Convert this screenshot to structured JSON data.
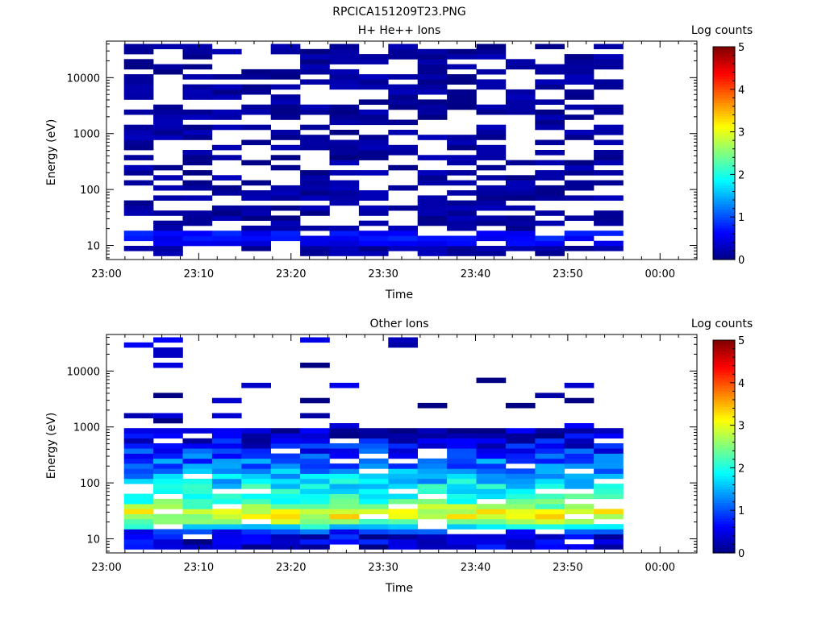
{
  "title": "RPCICA151209T23.PNG",
  "colorbar": {
    "label": "Log counts",
    "range": [
      0,
      5
    ],
    "tick_labels": [
      "0",
      "1",
      "2",
      "3",
      "4",
      "5"
    ]
  },
  "chart_data": [
    {
      "type": "heatmap",
      "title": "H+ He++ Ions",
      "xlabel": "Time",
      "ylabel": "Energy (eV)",
      "ylog": true,
      "xlim": [
        0,
        64
      ],
      "ylim": [
        5.6,
        45000
      ],
      "x_ticks": [
        {
          "v": 0,
          "label": "23:00"
        },
        {
          "v": 10,
          "label": "23:10"
        },
        {
          "v": 20,
          "label": "23:20"
        },
        {
          "v": 30,
          "label": "23:30"
        },
        {
          "v": 40,
          "label": "23:40"
        },
        {
          "v": 50,
          "label": "23:50"
        },
        {
          "v": 60,
          "label": "00:00"
        }
      ],
      "y_ticks": [
        {
          "v": 10,
          "label": "10"
        },
        {
          "v": 100,
          "label": "100"
        },
        {
          "v": 1000,
          "label": "1000"
        },
        {
          "v": 10000,
          "label": "10000"
        }
      ],
      "data_x_range": [
        1.9,
        56.0
      ],
      "n_columns": 17,
      "energy_rows": 42,
      "noise_level": 0.3,
      "bands": [
        {
          "from": 10.5,
          "to": 12.5,
          "level": 0.35
        },
        {
          "from": 12.5,
          "to": 20,
          "level": 0.5
        }
      ],
      "sparse_fill": 0.55,
      "colorbar_range": [
        0,
        5
      ]
    },
    {
      "type": "heatmap",
      "title": "Other Ions",
      "xlabel": "Time",
      "ylabel": "Energy (eV)",
      "ylog": true,
      "xlim": [
        0,
        64
      ],
      "ylim": [
        5.6,
        45000
      ],
      "x_ticks": [
        {
          "v": 0,
          "label": "23:00"
        },
        {
          "v": 10,
          "label": "23:10"
        },
        {
          "v": 20,
          "label": "23:20"
        },
        {
          "v": 30,
          "label": "23:30"
        },
        {
          "v": 40,
          "label": "23:40"
        },
        {
          "v": 50,
          "label": "23:50"
        },
        {
          "v": 60,
          "label": "00:00"
        }
      ],
      "y_ticks": [
        {
          "v": 10,
          "label": "10"
        },
        {
          "v": 100,
          "label": "100"
        },
        {
          "v": 1000,
          "label": "1000"
        },
        {
          "v": 10000,
          "label": "10000"
        }
      ],
      "data_x_range": [
        1.9,
        56.0
      ],
      "n_columns": 17,
      "energy_rows": 42,
      "profile": [
        {
          "e": 6,
          "level": 0.3
        },
        {
          "e": 12,
          "level": 0.5
        },
        {
          "e": 15,
          "level": 1.2
        },
        {
          "e": 20,
          "level": 2.6
        },
        {
          "e": 28,
          "level": 3.1
        },
        {
          "e": 40,
          "level": 2.4
        },
        {
          "e": 70,
          "level": 2.0
        },
        {
          "e": 150,
          "level": 1.4
        },
        {
          "e": 300,
          "level": 1.0
        },
        {
          "e": 600,
          "level": 0.4
        },
        {
          "e": 1000,
          "level": 0.2
        }
      ],
      "colorbar_range": [
        0,
        5
      ]
    }
  ]
}
